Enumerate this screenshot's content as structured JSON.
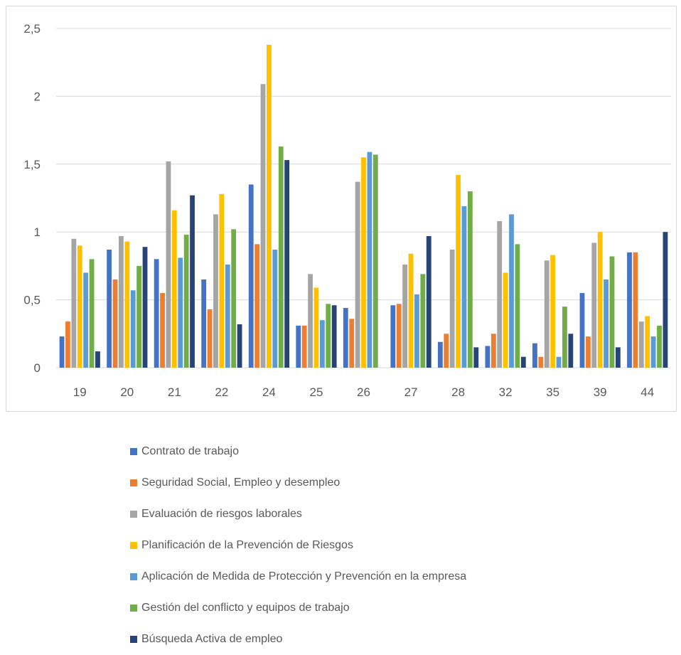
{
  "chart_data": {
    "type": "bar",
    "categories": [
      "19",
      "20",
      "21",
      "22",
      "24",
      "25",
      "26",
      "27",
      "28",
      "32",
      "35",
      "39",
      "44"
    ],
    "ylim": [
      0,
      2.5
    ],
    "yticks": [
      "0",
      "0,5",
      "1",
      "1,5",
      "2",
      "2,5"
    ],
    "ytick_values": [
      0,
      0.5,
      1,
      1.5,
      2,
      2.5
    ],
    "grid": true,
    "legend_position": "bottom",
    "series": [
      {
        "name": "Contrato de trabajo",
        "color": "#4472c4",
        "values": [
          0.23,
          0.87,
          0.8,
          0.65,
          1.35,
          0.31,
          0.44,
          0.46,
          0.19,
          0.16,
          0.18,
          0.55,
          0.85
        ]
      },
      {
        "name": "Seguridad Social, Empleo y desempleo",
        "color": "#ed7d31",
        "values": [
          0.34,
          0.65,
          0.55,
          0.43,
          0.91,
          0.31,
          0.36,
          0.47,
          0.25,
          0.25,
          0.08,
          0.23,
          0.85
        ]
      },
      {
        "name": "Evaluación de riesgos laborales",
        "color": "#a5a5a5",
        "values": [
          0.95,
          0.97,
          1.52,
          1.13,
          2.09,
          0.69,
          1.37,
          0.76,
          0.87,
          1.08,
          0.79,
          0.92,
          0.34
        ]
      },
      {
        "name": "Planificación de la Prevención de Riesgos",
        "color": "#ffc000",
        "values": [
          0.9,
          0.93,
          1.16,
          1.28,
          2.38,
          0.59,
          1.55,
          0.84,
          1.42,
          0.7,
          0.83,
          1.0,
          0.38
        ]
      },
      {
        "name": "Aplicación de Medida de Protección y Prevención en la empresa",
        "color": "#5b9bd5",
        "values": [
          0.7,
          0.57,
          0.81,
          0.76,
          0.87,
          0.35,
          1.59,
          0.54,
          1.19,
          1.13,
          0.08,
          0.65,
          0.23
        ]
      },
      {
        "name": "Gestión del conflicto y equipos de trabajo",
        "color": "#70ad47",
        "values": [
          0.8,
          0.75,
          0.98,
          1.02,
          1.63,
          0.47,
          1.57,
          0.69,
          1.3,
          0.91,
          0.45,
          0.82,
          0.31
        ]
      },
      {
        "name": "Búsqueda Activa de empleo",
        "color": "#264478",
        "values": [
          0.12,
          0.89,
          1.27,
          0.32,
          1.53,
          0.46,
          0.0,
          0.97,
          0.15,
          0.08,
          0.25,
          0.15,
          1.0
        ]
      }
    ]
  }
}
